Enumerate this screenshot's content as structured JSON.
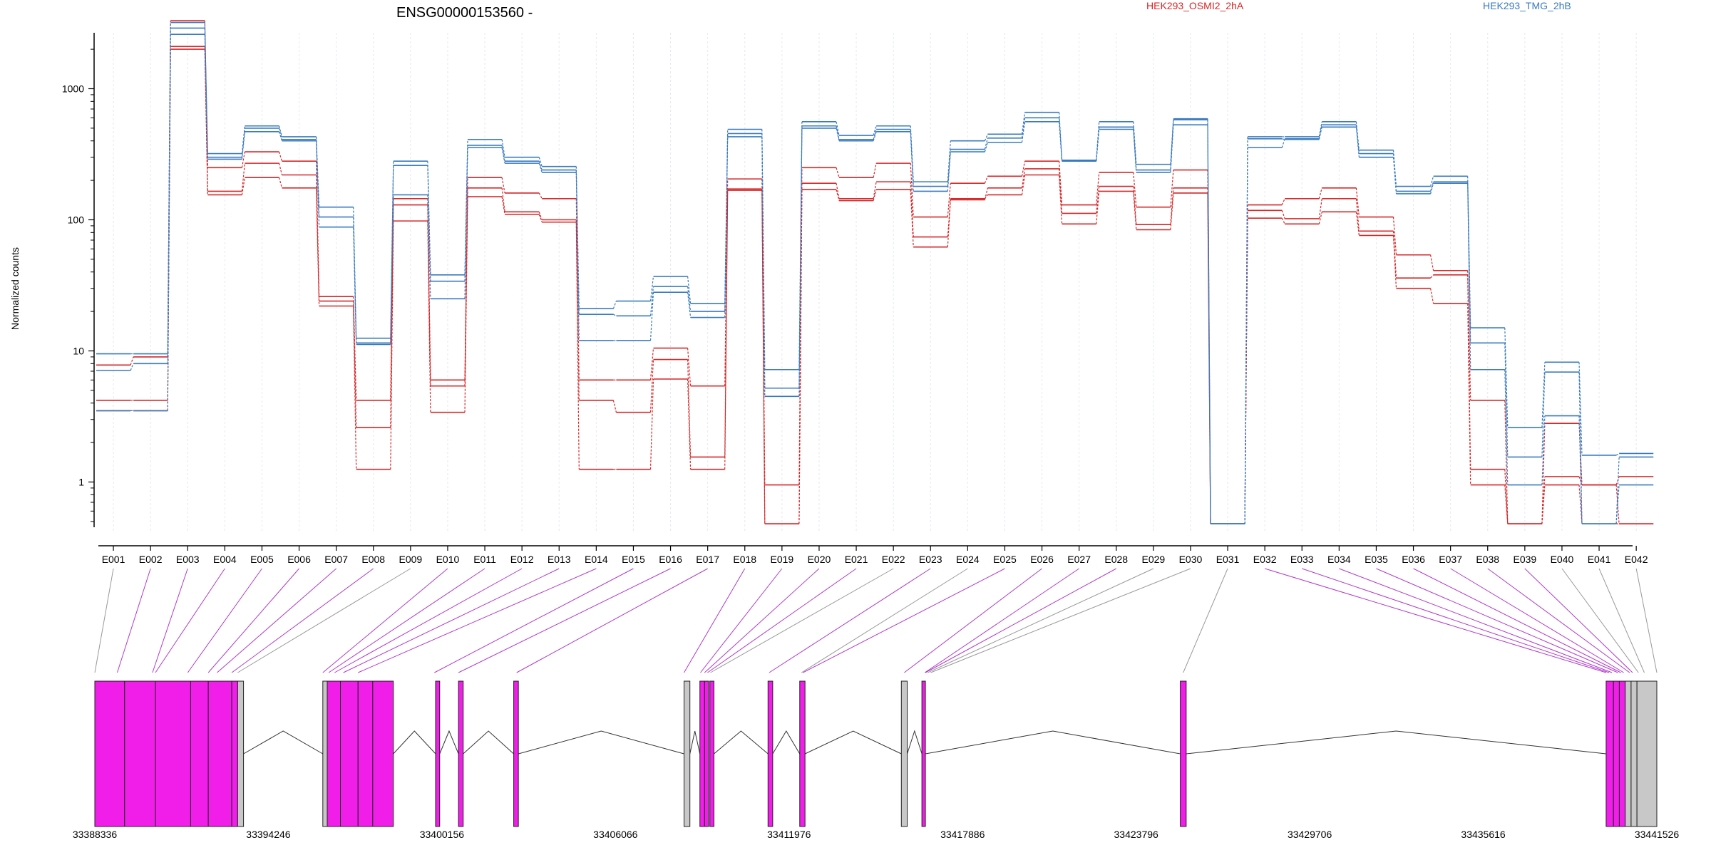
{
  "chart_data": {
    "type": "line",
    "title": "ENSG00000153560 -",
    "ylabel": "Normalized counts",
    "yscale": "log",
    "ylim": [
      0.4,
      4000
    ],
    "yticks": [
      {
        "value": 1,
        "label": "1"
      },
      {
        "value": 10,
        "label": "10"
      },
      {
        "value": 100,
        "label": "100"
      },
      {
        "value": 1000,
        "label": "1000"
      }
    ],
    "grid": "vertical",
    "legend": [
      {
        "label": "HEK293_OSMI2_2hA",
        "color": "#d62728"
      },
      {
        "label": "HEK293_TMG_2hB",
        "color": "#3a7bbf"
      }
    ],
    "categories": [
      "E001",
      "E002",
      "E003",
      "E004",
      "E005",
      "E006",
      "E007",
      "E008",
      "E009",
      "E010",
      "E011",
      "E012",
      "E013",
      "E014",
      "E015",
      "E016",
      "E017",
      "E018",
      "E019",
      "E020",
      "E021",
      "E022",
      "E023",
      "E024",
      "E025",
      "E026",
      "E027",
      "E028",
      "E029",
      "E030",
      "E031",
      "E032",
      "E033",
      "E034",
      "E035",
      "E036",
      "E037",
      "E038",
      "E039",
      "E040",
      "E041",
      "E042"
    ],
    "series": [
      {
        "group": "HEK293_OSMI2_2hA",
        "color": "#d62728",
        "values": [
          7.8,
          9.0,
          3300,
          250,
          330,
          280,
          26,
          4.2,
          145,
          6.0,
          210,
          160,
          145,
          6.0,
          6.0,
          10.5,
          5.4,
          205,
          0.95,
          250,
          210,
          270,
          105,
          190,
          215,
          280,
          130,
          230,
          125,
          240,
          0.48,
          130,
          145,
          175,
          105,
          54,
          41,
          4.2,
          0.48,
          2.8,
          0.95,
          1.1
        ]
      },
      {
        "group": "HEK293_OSMI2_2hA",
        "color": "#d62728",
        "values": [
          4.2,
          4.2,
          2100,
          165,
          270,
          220,
          24,
          2.6,
          130,
          5.4,
          175,
          115,
          100,
          4.2,
          3.4,
          8.6,
          1.55,
          172,
          0.48,
          190,
          145,
          195,
          74,
          142,
          175,
          245,
          112,
          180,
          92,
          175,
          0.48,
          118,
          102,
          145,
          82,
          36,
          38,
          1.25,
          0.48,
          1.1,
          0.95,
          0.48
        ]
      },
      {
        "group": "HEK293_OSMI2_2hA",
        "color": "#d62728",
        "values": [
          3.5,
          3.5,
          2000,
          155,
          210,
          175,
          22,
          1.25,
          98,
          3.4,
          150,
          110,
          96,
          1.25,
          1.25,
          6.1,
          1.25,
          168,
          0.48,
          170,
          140,
          170,
          62,
          145,
          155,
          220,
          93,
          165,
          84,
          160,
          0.48,
          103,
          93,
          115,
          76,
          30,
          23,
          0.95,
          0.48,
          0.95,
          0.48,
          0.48
        ]
      },
      {
        "group": "HEK293_TMG_2hB",
        "color": "#3a7bbf",
        "values": [
          9.5,
          9.5,
          3200,
          320,
          520,
          430,
          125,
          12.5,
          280,
          38,
          410,
          300,
          255,
          21,
          24,
          37,
          23,
          490,
          7.2,
          560,
          440,
          520,
          195,
          400,
          450,
          660,
          285,
          560,
          265,
          590,
          0.48,
          430,
          430,
          560,
          340,
          180,
          215,
          15,
          2.6,
          8.2,
          1.6,
          1.65
        ]
      },
      {
        "group": "HEK293_TMG_2hB",
        "color": "#3a7bbf",
        "values": [
          7.1,
          8.0,
          2900,
          300,
          500,
          410,
          105,
          11.5,
          260,
          34,
          370,
          280,
          240,
          19,
          18.5,
          31,
          20,
          455,
          5.2,
          520,
          410,
          490,
          180,
          345,
          420,
          600,
          280,
          510,
          240,
          580,
          0.48,
          355,
          415,
          530,
          320,
          165,
          195,
          11.5,
          1.55,
          6.9,
          0.48,
          1.55
        ]
      },
      {
        "group": "HEK293_TMG_2hB",
        "color": "#3a7bbf",
        "values": [
          3.5,
          3.5,
          2600,
          290,
          470,
          400,
          88,
          11.2,
          155,
          25,
          355,
          270,
          230,
          12,
          12,
          28,
          18,
          430,
          4.5,
          500,
          400,
          470,
          165,
          330,
          390,
          560,
          280,
          490,
          230,
          530,
          0.48,
          415,
          410,
          510,
          300,
          158,
          190,
          7.2,
          0.95,
          3.2,
          0.48,
          0.95
        ]
      }
    ],
    "gene_model": {
      "coord_labels": [
        "33388336",
        "33394246",
        "33400156",
        "33406066",
        "33411976",
        "33417886",
        "33423796",
        "33429706",
        "33435616",
        "33441526"
      ],
      "exons": [
        {
          "start": 33388336,
          "end": 33389350,
          "tested": true
        },
        {
          "start": 33389350,
          "end": 33390400,
          "tested": true
        },
        {
          "start": 33390400,
          "end": 33391600,
          "tested": true
        },
        {
          "start": 33391600,
          "end": 33392200,
          "tested": true
        },
        {
          "start": 33392200,
          "end": 33393000,
          "tested": true
        },
        {
          "start": 33393000,
          "end": 33393200,
          "tested": true
        },
        {
          "start": 33393200,
          "end": 33393400,
          "tested": false
        },
        {
          "start": 33396100,
          "end": 33396250,
          "tested": false
        },
        {
          "start": 33396250,
          "end": 33396700,
          "tested": true
        },
        {
          "start": 33396700,
          "end": 33397300,
          "tested": true
        },
        {
          "start": 33397300,
          "end": 33397800,
          "tested": true
        },
        {
          "start": 33397800,
          "end": 33398500,
          "tested": true
        },
        {
          "start": 33399940,
          "end": 33400080,
          "tested": true
        },
        {
          "start": 33400720,
          "end": 33400880,
          "tested": true
        },
        {
          "start": 33402600,
          "end": 33402760,
          "tested": true
        },
        {
          "start": 33408400,
          "end": 33408600,
          "tested": false
        },
        {
          "start": 33408940,
          "end": 33409100,
          "tested": true
        },
        {
          "start": 33409100,
          "end": 33409240,
          "tested": true
        },
        {
          "start": 33409280,
          "end": 33409420,
          "tested": true
        },
        {
          "start": 33411260,
          "end": 33411420,
          "tested": true
        },
        {
          "start": 33412340,
          "end": 33412520,
          "tested": true
        },
        {
          "start": 33415800,
          "end": 33416000,
          "tested": false
        },
        {
          "start": 33416500,
          "end": 33416620,
          "tested": true
        },
        {
          "start": 33425300,
          "end": 33425500,
          "tested": true
        },
        {
          "start": 33439800,
          "end": 33440050,
          "tested": true
        },
        {
          "start": 33440050,
          "end": 33440250,
          "tested": true
        },
        {
          "start": 33440250,
          "end": 33440450,
          "tested": true
        },
        {
          "start": 33440450,
          "end": 33440650,
          "tested": false
        },
        {
          "start": 33440650,
          "end": 33440850,
          "tested": false
        },
        {
          "start": 33440850,
          "end": 33441526,
          "tested": false
        }
      ],
      "introns": [
        [
          33393400,
          33396100
        ],
        [
          33398500,
          33399940
        ],
        [
          33400080,
          33400720
        ],
        [
          33400880,
          33402600
        ],
        [
          33402760,
          33408400
        ],
        [
          33408600,
          33408940
        ],
        [
          33409420,
          33411260
        ],
        [
          33411420,
          33412340
        ],
        [
          33412520,
          33415800
        ],
        [
          33416000,
          33416500
        ],
        [
          33416620,
          33425300
        ],
        [
          33425500,
          33439800
        ]
      ],
      "bin_anchor_coords": [
        33388336,
        33389100,
        33390300,
        33390400,
        33391500,
        33392200,
        33392500,
        33393000,
        33393200,
        33396100,
        33396300,
        33396500,
        33396800,
        33397300,
        33399900,
        33400720,
        33402700,
        33408400,
        33408960,
        33409100,
        33409200,
        33409300,
        33411300,
        33412400,
        33412450,
        33415900,
        33416600,
        33416620,
        33416700,
        33416800,
        33425400,
        33439800,
        33439900,
        33440000,
        33440200,
        33440300,
        33440400,
        33440600,
        33440700,
        33440900,
        33441100,
        33441526
      ],
      "bin_tested": [
        false,
        true,
        true,
        true,
        true,
        true,
        true,
        true,
        false,
        true,
        true,
        true,
        true,
        true,
        true,
        true,
        true,
        true,
        true,
        true,
        true,
        false,
        true,
        false,
        true,
        true,
        true,
        true,
        false,
        false,
        false,
        true,
        true,
        true,
        true,
        true,
        true,
        true,
        true,
        false,
        false,
        false
      ]
    }
  }
}
